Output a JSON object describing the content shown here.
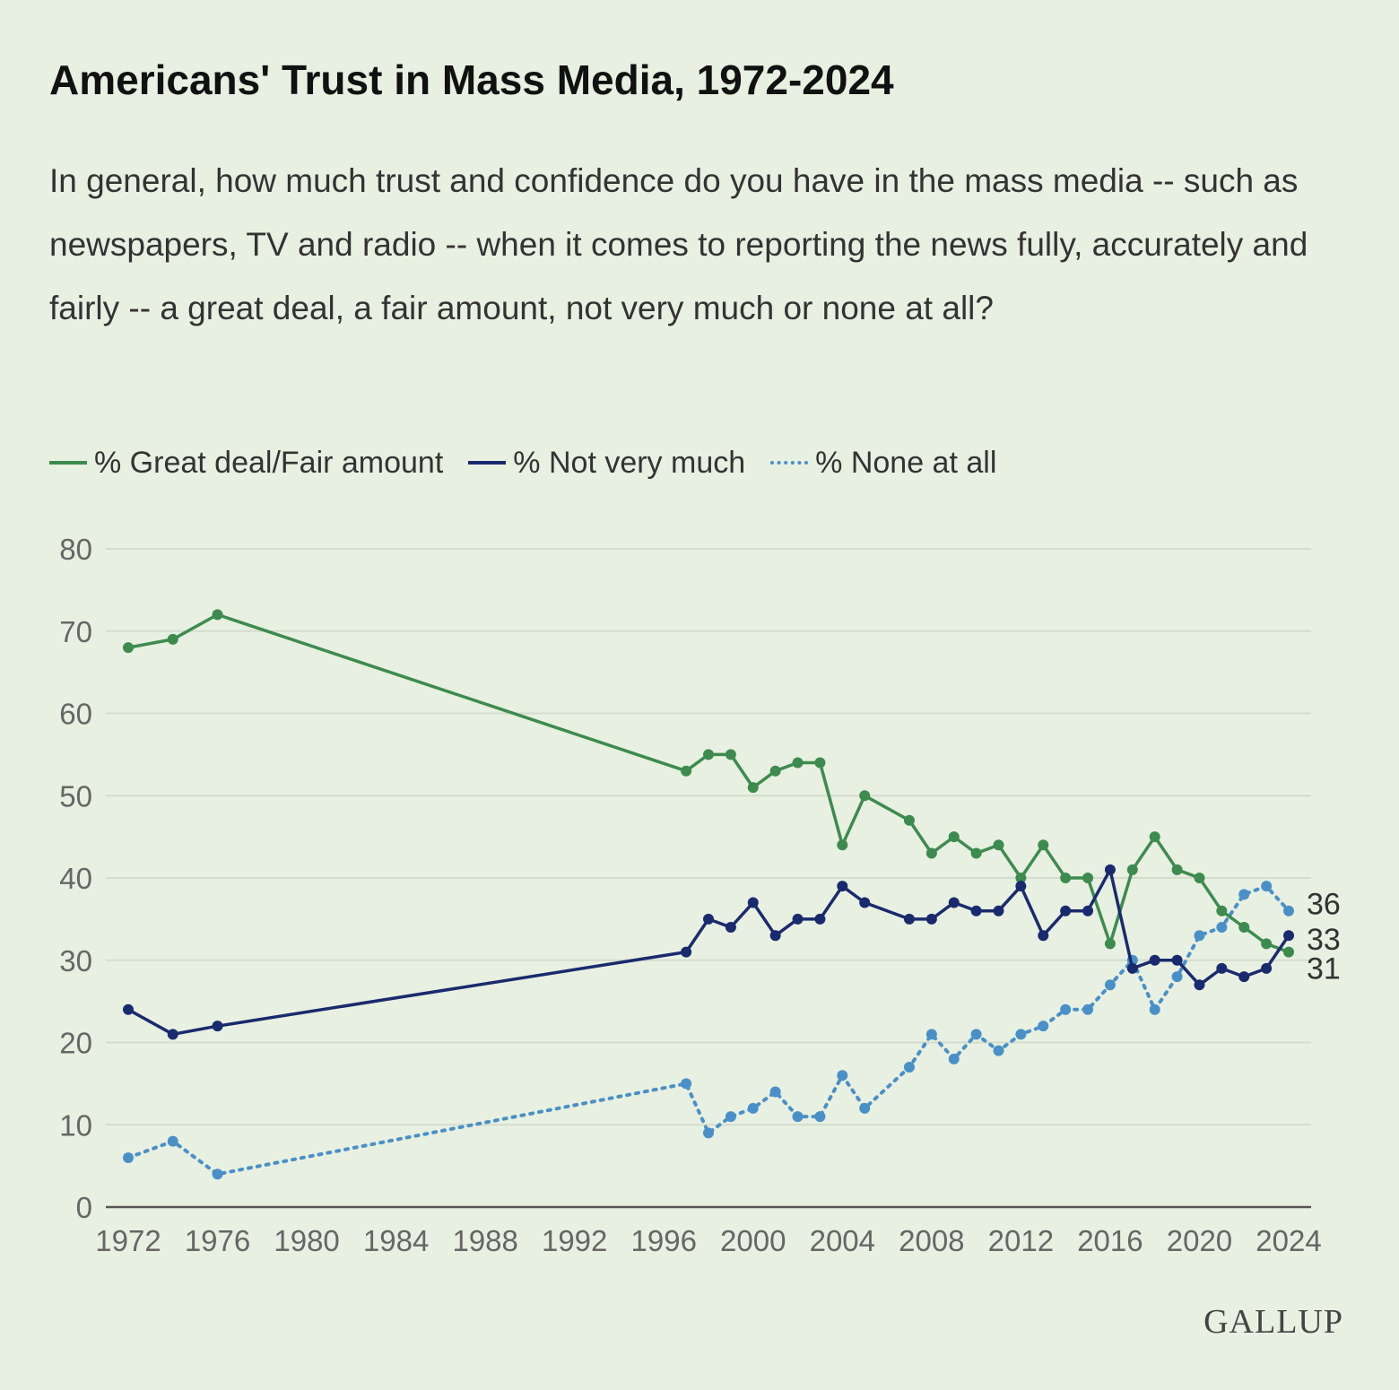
{
  "chart_data": {
    "type": "line",
    "title": "Americans' Trust in Mass Media, 1972-2024",
    "subtitle": "In general, how much trust and confidence do you have in the mass media -- such as newspapers, TV and radio -- when it comes to reporting the news fully, accurately and fairly -- a great deal, a fair amount, not very much or none at all?",
    "xlabel": "",
    "ylabel": "",
    "xlim": [
      1972,
      2024
    ],
    "ylim": [
      0,
      80
    ],
    "x_ticks": [
      1972,
      1976,
      1980,
      1984,
      1988,
      1992,
      1996,
      2000,
      2004,
      2008,
      2012,
      2016,
      2020,
      2024
    ],
    "y_ticks": [
      0,
      10,
      20,
      30,
      40,
      50,
      60,
      70,
      80
    ],
    "grid": true,
    "legend_position": "top-left",
    "x": [
      1972,
      1974,
      1976,
      1997,
      1998,
      1999,
      2000,
      2001,
      2002,
      2003,
      2004,
      2005,
      2007,
      2008,
      2009,
      2010,
      2011,
      2012,
      2013,
      2014,
      2015,
      2016,
      2017,
      2018,
      2019,
      2020,
      2021,
      2022,
      2023,
      2024
    ],
    "series": [
      {
        "name": "% Great deal/Fair amount",
        "color": "#3d8b4f",
        "style": "solid",
        "values": [
          68,
          69,
          72,
          53,
          55,
          55,
          51,
          53,
          54,
          54,
          44,
          50,
          47,
          43,
          45,
          43,
          44,
          40,
          44,
          40,
          40,
          32,
          41,
          45,
          41,
          40,
          36,
          34,
          32,
          31
        ],
        "end_label": "31"
      },
      {
        "name": "% Not very much",
        "color": "#1a2a6e",
        "style": "solid",
        "values": [
          24,
          21,
          22,
          31,
          35,
          34,
          37,
          33,
          35,
          35,
          39,
          37,
          35,
          35,
          37,
          36,
          36,
          39,
          33,
          36,
          36,
          41,
          29,
          30,
          30,
          27,
          29,
          28,
          29,
          33
        ],
        "end_label": "33"
      },
      {
        "name": "% None at all",
        "color": "#4a90c8",
        "style": "dotted",
        "values": [
          6,
          8,
          4,
          15,
          9,
          11,
          12,
          14,
          11,
          11,
          16,
          12,
          17,
          21,
          18,
          21,
          19,
          21,
          22,
          24,
          24,
          27,
          30,
          24,
          28,
          33,
          34,
          38,
          39,
          36
        ],
        "end_label": "36"
      }
    ]
  },
  "brand": "GALLUP"
}
